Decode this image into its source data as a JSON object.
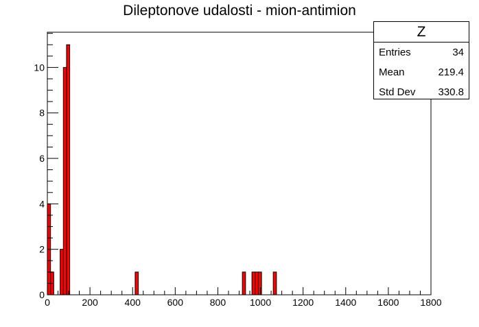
{
  "chart_data": {
    "type": "bar",
    "title": "Dileptonove udalosti - mion-antimion",
    "xlabel": "",
    "ylabel": "",
    "xlim": [
      0,
      1800
    ],
    "ylim": [
      0,
      11.55
    ],
    "x_ticks": [
      0,
      200,
      400,
      600,
      800,
      1000,
      1200,
      1400,
      1600,
      1800
    ],
    "y_ticks": [
      0,
      2,
      4,
      6,
      8,
      10
    ],
    "bin_width": 15,
    "bars": [
      {
        "x0": 0,
        "value": 4
      },
      {
        "x0": 15,
        "value": 1
      },
      {
        "x0": 30,
        "value": 0
      },
      {
        "x0": 45,
        "value": 0
      },
      {
        "x0": 60,
        "value": 2
      },
      {
        "x0": 75,
        "value": 10
      },
      {
        "x0": 90,
        "value": 11
      },
      {
        "x0": 412,
        "value": 1
      },
      {
        "x0": 915,
        "value": 1
      },
      {
        "x0": 960,
        "value": 1
      },
      {
        "x0": 975,
        "value": 1
      },
      {
        "x0": 990,
        "value": 1
      },
      {
        "x0": 1060,
        "value": 1
      }
    ],
    "fill_color": "#ff0000",
    "stats": {
      "name": "Z",
      "entries_label": "Entries",
      "entries": "34",
      "mean_label": "Mean",
      "mean": "219.4",
      "stddev_label": "Std Dev",
      "stddev": "330.8"
    }
  }
}
